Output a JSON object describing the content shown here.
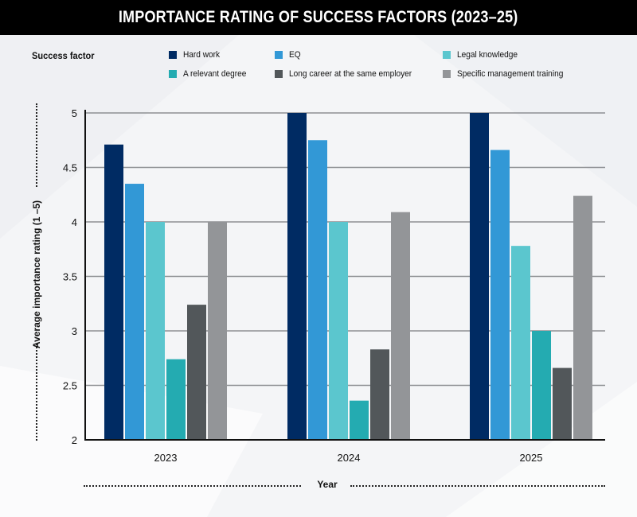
{
  "title": "IMPORTANCE RATING OF SUCCESS FACTORS (2023–25)",
  "legend": {
    "title": "Success factor"
  },
  "chart_data": {
    "type": "bar",
    "title": "IMPORTANCE RATING OF SUCCESS FACTORS (2023–25)",
    "xlabel": "Year",
    "ylabel": "Average importance rating (1 –5)",
    "categories": [
      "2023",
      "2024",
      "2025"
    ],
    "ylim": [
      2,
      5
    ],
    "yticks": [
      2,
      2.5,
      3,
      3.5,
      4,
      4.5,
      5
    ],
    "ytick_labels": [
      "2",
      "2.5",
      "3",
      "3.5",
      "4",
      "4.5",
      "5"
    ],
    "grid": true,
    "legend_position": "top",
    "legend_title": "Success factor",
    "series": [
      {
        "name": "Hard work",
        "color": "#002B63",
        "values": [
          4.71,
          5.0,
          5.0
        ]
      },
      {
        "name": "EQ",
        "color": "#3298D6",
        "values": [
          4.35,
          4.75,
          4.66
        ]
      },
      {
        "name": "Legal knowledge",
        "color": "#5BC6CE",
        "values": [
          4.0,
          4.0,
          3.78
        ]
      },
      {
        "name": "A relevant degree",
        "color": "#24ABB1",
        "values": [
          2.74,
          2.36,
          3.0
        ]
      },
      {
        "name": "Long career at the same employer",
        "color": "#52575A",
        "values": [
          3.24,
          2.83,
          2.66
        ]
      },
      {
        "name": "Specific management training",
        "color": "#939598",
        "values": [
          4.0,
          4.09,
          4.24
        ]
      }
    ]
  }
}
